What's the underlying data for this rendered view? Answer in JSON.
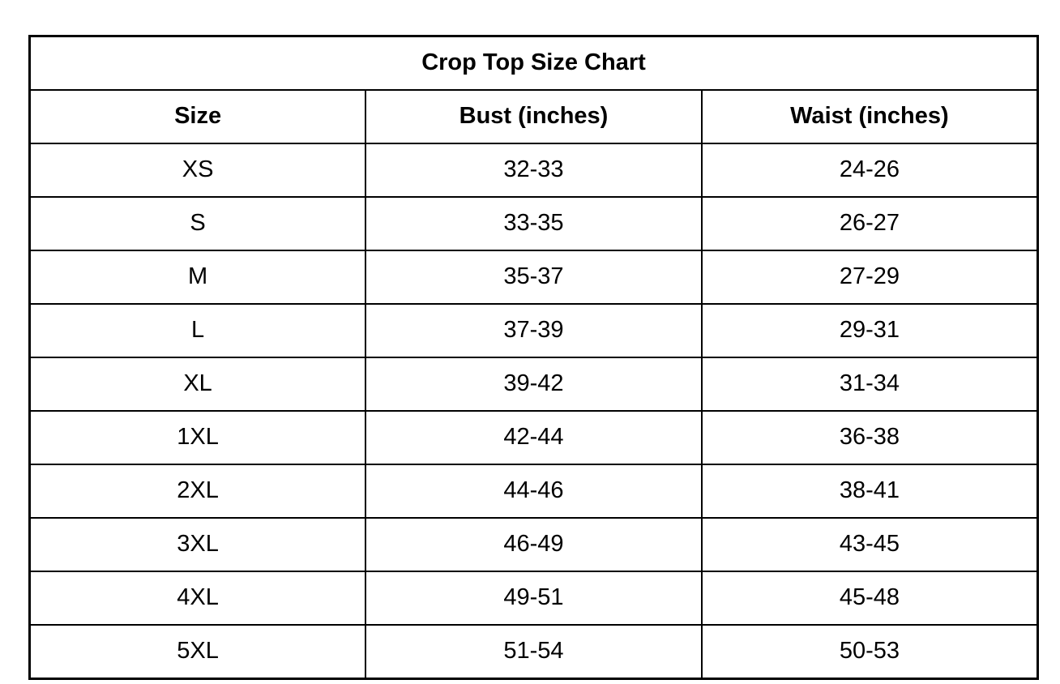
{
  "table": {
    "title": "Crop Top Size Chart",
    "columns": [
      {
        "label": "Size"
      },
      {
        "label": "Bust (inches)"
      },
      {
        "label": "Waist (inches)"
      }
    ],
    "rows": [
      {
        "size": "XS",
        "bust": "32-33",
        "waist": "24-26"
      },
      {
        "size": "S",
        "bust": "33-35",
        "waist": "26-27"
      },
      {
        "size": "M",
        "bust": "35-37",
        "waist": "27-29"
      },
      {
        "size": "L",
        "bust": "37-39",
        "waist": "29-31"
      },
      {
        "size": "XL",
        "bust": "39-42",
        "waist": "31-34"
      },
      {
        "size": "1XL",
        "bust": "42-44",
        "waist": "36-38"
      },
      {
        "size": "2XL",
        "bust": "44-46",
        "waist": "38-41"
      },
      {
        "size": "3XL",
        "bust": "46-49",
        "waist": "43-45"
      },
      {
        "size": "4XL",
        "bust": "49-51",
        "waist": "45-48"
      },
      {
        "size": "5XL",
        "bust": "51-54",
        "waist": "50-53"
      }
    ]
  },
  "colors": {
    "background": "#ffffff",
    "border": "#000000",
    "text": "#000000"
  }
}
